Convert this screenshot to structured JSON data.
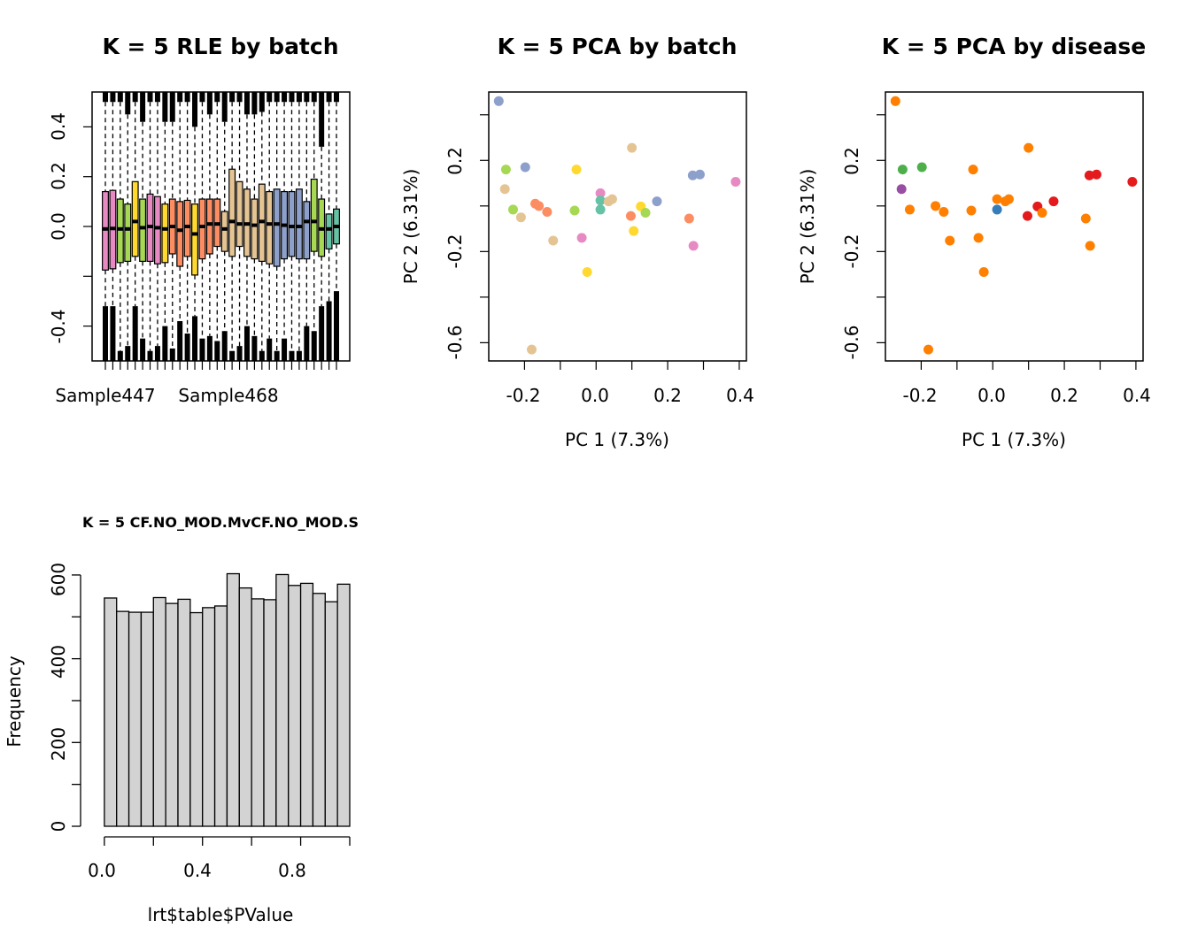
{
  "chart_data": [
    {
      "type": "boxplot",
      "title": "K = 5 RLE by batch",
      "xlabel": "",
      "ylabel": "",
      "x_tick_labels": [
        "Sample447",
        "Sample468"
      ],
      "y_ticks": [
        "-0.4",
        "0.0",
        "0.2",
        "0.4"
      ],
      "ylim": [
        -0.54,
        0.54
      ],
      "boxes": [
        {
          "color": "#E78AC3",
          "q1": -0.175,
          "q3": 0.14,
          "median": -0.01,
          "whisker_low": -0.32,
          "whisker_high": 0.5
        },
        {
          "color": "#E78AC3",
          "q1": -0.17,
          "q3": 0.145,
          "median": -0.008,
          "whisker_low": -0.32,
          "whisker_high": 0.5
        },
        {
          "color": "#A6D854",
          "q1": -0.145,
          "q3": 0.11,
          "median": -0.01,
          "whisker_low": -0.5,
          "whisker_high": 0.5
        },
        {
          "color": "#A6D854",
          "q1": -0.14,
          "q3": 0.09,
          "median": -0.01,
          "whisker_low": -0.48,
          "whisker_high": 0.45
        },
        {
          "color": "#FFD92F",
          "q1": -0.12,
          "q3": 0.18,
          "median": 0.02,
          "whisker_low": -0.32,
          "whisker_high": 0.5
        },
        {
          "color": "#A6D854",
          "q1": -0.14,
          "q3": 0.11,
          "median": -0.005,
          "whisker_low": -0.45,
          "whisker_high": 0.42
        },
        {
          "color": "#E78AC3",
          "q1": -0.14,
          "q3": 0.13,
          "median": 0.0,
          "whisker_low": -0.5,
          "whisker_high": 0.5
        },
        {
          "color": "#E78AC3",
          "q1": -0.15,
          "q3": 0.12,
          "median": -0.005,
          "whisker_low": -0.48,
          "whisker_high": 0.5
        },
        {
          "color": "#FFD92F",
          "q1": -0.145,
          "q3": 0.09,
          "median": -0.01,
          "whisker_low": -0.4,
          "whisker_high": 0.42
        },
        {
          "color": "#FC8D62",
          "q1": -0.11,
          "q3": 0.11,
          "median": 0.0,
          "whisker_low": -0.49,
          "whisker_high": 0.42
        },
        {
          "color": "#FC8D62",
          "q1": -0.16,
          "q3": 0.1,
          "median": -0.015,
          "whisker_low": -0.38,
          "whisker_high": 0.5
        },
        {
          "color": "#FC8D62",
          "q1": -0.12,
          "q3": 0.105,
          "median": 0.0,
          "whisker_low": -0.43,
          "whisker_high": 0.5
        },
        {
          "color": "#FFD92F",
          "q1": -0.195,
          "q3": 0.09,
          "median": -0.03,
          "whisker_low": -0.36,
          "whisker_high": 0.4
        },
        {
          "color": "#FC8D62",
          "q1": -0.13,
          "q3": 0.11,
          "median": 0.0,
          "whisker_low": -0.45,
          "whisker_high": 0.5
        },
        {
          "color": "#FC8D62",
          "q1": -0.11,
          "q3": 0.11,
          "median": 0.01,
          "whisker_low": -0.44,
          "whisker_high": 0.45
        },
        {
          "color": "#FC8D62",
          "q1": -0.08,
          "q3": 0.11,
          "median": 0.01,
          "whisker_low": -0.46,
          "whisker_high": 0.5
        },
        {
          "color": "#E5C494",
          "q1": -0.1,
          "q3": 0.06,
          "median": -0.01,
          "whisker_low": -0.42,
          "whisker_high": 0.42
        },
        {
          "color": "#E5C494",
          "q1": -0.12,
          "q3": 0.23,
          "median": 0.02,
          "whisker_low": -0.5,
          "whisker_high": 0.5
        },
        {
          "color": "#E5C494",
          "q1": -0.08,
          "q3": 0.18,
          "median": 0.01,
          "whisker_low": -0.48,
          "whisker_high": 0.5
        },
        {
          "color": "#E5C494",
          "q1": -0.12,
          "q3": 0.15,
          "median": 0.01,
          "whisker_low": -0.4,
          "whisker_high": 0.45
        },
        {
          "color": "#E5C494",
          "q1": -0.13,
          "q3": 0.11,
          "median": 0.005,
          "whisker_low": -0.44,
          "whisker_high": 0.45
        },
        {
          "color": "#E5C494",
          "q1": -0.14,
          "q3": 0.17,
          "median": 0.02,
          "whisker_low": -0.5,
          "whisker_high": 0.46
        },
        {
          "color": "#E5C494",
          "q1": -0.15,
          "q3": 0.14,
          "median": 0.01,
          "whisker_low": -0.45,
          "whisker_high": 0.5
        },
        {
          "color": "#8DA0CB",
          "q1": -0.16,
          "q3": 0.15,
          "median": 0.01,
          "whisker_low": -0.5,
          "whisker_high": 0.5
        },
        {
          "color": "#8DA0CB",
          "q1": -0.13,
          "q3": 0.14,
          "median": 0.005,
          "whisker_low": -0.45,
          "whisker_high": 0.5
        },
        {
          "color": "#8DA0CB",
          "q1": -0.12,
          "q3": 0.14,
          "median": 0.0,
          "whisker_low": -0.5,
          "whisker_high": 0.5
        },
        {
          "color": "#8DA0CB",
          "q1": -0.13,
          "q3": 0.15,
          "median": 0.0,
          "whisker_low": -0.5,
          "whisker_high": 0.5
        },
        {
          "color": "#8DA0CB",
          "q1": -0.13,
          "q3": 0.1,
          "median": 0.02,
          "whisker_low": -0.4,
          "whisker_high": 0.5
        },
        {
          "color": "#A6D854",
          "q1": -0.1,
          "q3": 0.19,
          "median": 0.02,
          "whisker_low": -0.42,
          "whisker_high": 0.5
        },
        {
          "color": "#A6D854",
          "q1": -0.12,
          "q3": 0.11,
          "median": -0.01,
          "whisker_low": -0.32,
          "whisker_high": 0.32
        },
        {
          "color": "#66C2A5",
          "q1": -0.09,
          "q3": 0.05,
          "median": -0.01,
          "whisker_low": -0.3,
          "whisker_high": 0.5
        },
        {
          "color": "#66C2A5",
          "q1": -0.07,
          "q3": 0.07,
          "median": 0.0,
          "whisker_low": -0.26,
          "whisker_high": 0.5
        }
      ]
    },
    {
      "type": "scatter",
      "title": "K = 5 PCA by batch",
      "xlabel": "PC 1 (7.3%)",
      "ylabel": "PC 2 (6.31%)",
      "x_ticks": [
        "-0.2",
        "0.0",
        "0.2",
        "0.4"
      ],
      "y_ticks": [
        "-0.6",
        "-0.2",
        "0.2"
      ],
      "xlim": [
        -0.3,
        0.42
      ],
      "ylim": [
        -0.68,
        0.5
      ],
      "points": [
        {
          "x": -0.272,
          "y": 0.46,
          "color": "#8DA0CB"
        },
        {
          "x": -0.252,
          "y": 0.16,
          "color": "#A6D854"
        },
        {
          "x": -0.255,
          "y": 0.074,
          "color": "#E5C494"
        },
        {
          "x": -0.198,
          "y": 0.17,
          "color": "#8DA0CB"
        },
        {
          "x": -0.232,
          "y": -0.016,
          "color": "#A6D854"
        },
        {
          "x": -0.21,
          "y": -0.05,
          "color": "#E5C494"
        },
        {
          "x": -0.17,
          "y": 0.01,
          "color": "#FC8D62"
        },
        {
          "x": -0.16,
          "y": 0.0,
          "color": "#FC8D62"
        },
        {
          "x": -0.137,
          "y": -0.026,
          "color": "#FC8D62"
        },
        {
          "x": -0.12,
          "y": -0.152,
          "color": "#E5C494"
        },
        {
          "x": -0.18,
          "y": -0.63,
          "color": "#E5C494"
        },
        {
          "x": -0.06,
          "y": -0.02,
          "color": "#A6D854"
        },
        {
          "x": -0.055,
          "y": 0.16,
          "color": "#FFD92F"
        },
        {
          "x": -0.04,
          "y": -0.14,
          "color": "#E78AC3"
        },
        {
          "x": -0.025,
          "y": -0.29,
          "color": "#FFD92F"
        },
        {
          "x": 0.012,
          "y": 0.056,
          "color": "#E78AC3"
        },
        {
          "x": 0.012,
          "y": 0.024,
          "color": "#66C2A5"
        },
        {
          "x": 0.012,
          "y": -0.016,
          "color": "#66C2A5"
        },
        {
          "x": 0.035,
          "y": 0.02,
          "color": "#E5C494"
        },
        {
          "x": 0.045,
          "y": 0.03,
          "color": "#E5C494"
        },
        {
          "x": 0.1,
          "y": 0.255,
          "color": "#E5C494"
        },
        {
          "x": 0.097,
          "y": -0.044,
          "color": "#FC8D62"
        },
        {
          "x": 0.105,
          "y": -0.11,
          "color": "#FFD92F"
        },
        {
          "x": 0.125,
          "y": -0.002,
          "color": "#FFD92F"
        },
        {
          "x": 0.138,
          "y": -0.03,
          "color": "#A6D854"
        },
        {
          "x": 0.17,
          "y": 0.02,
          "color": "#8DA0CB"
        },
        {
          "x": 0.26,
          "y": -0.055,
          "color": "#FC8D62"
        },
        {
          "x": 0.272,
          "y": -0.175,
          "color": "#E78AC3"
        },
        {
          "x": 0.27,
          "y": 0.134,
          "color": "#8DA0CB"
        },
        {
          "x": 0.29,
          "y": 0.138,
          "color": "#8DA0CB"
        },
        {
          "x": 0.39,
          "y": 0.106,
          "color": "#E78AC3"
        }
      ]
    },
    {
      "type": "scatter",
      "title": "K = 5 PCA by disease",
      "xlabel": "PC 1 (7.3%)",
      "ylabel": "PC 2 (6.31%)",
      "x_ticks": [
        "-0.2",
        "0.0",
        "0.2",
        "0.4"
      ],
      "y_ticks": [
        "-0.6",
        "-0.2",
        "0.2"
      ],
      "xlim": [
        -0.3,
        0.42
      ],
      "ylim": [
        -0.68,
        0.5
      ],
      "points": [
        {
          "x": -0.272,
          "y": 0.46,
          "color": "#FF7F00"
        },
        {
          "x": -0.252,
          "y": 0.16,
          "color": "#4DAF4A"
        },
        {
          "x": -0.255,
          "y": 0.074,
          "color": "#984EA3"
        },
        {
          "x": -0.198,
          "y": 0.17,
          "color": "#4DAF4A"
        },
        {
          "x": -0.232,
          "y": -0.016,
          "color": "#FF7F00"
        },
        {
          "x": -0.16,
          "y": 0.0,
          "color": "#FF7F00"
        },
        {
          "x": -0.137,
          "y": -0.026,
          "color": "#FF7F00"
        },
        {
          "x": -0.12,
          "y": -0.152,
          "color": "#FF7F00"
        },
        {
          "x": -0.18,
          "y": -0.63,
          "color": "#FF7F00"
        },
        {
          "x": -0.06,
          "y": -0.02,
          "color": "#FF7F00"
        },
        {
          "x": -0.055,
          "y": 0.16,
          "color": "#FF7F00"
        },
        {
          "x": -0.04,
          "y": -0.14,
          "color": "#FF7F00"
        },
        {
          "x": -0.025,
          "y": -0.29,
          "color": "#FF7F00"
        },
        {
          "x": 0.012,
          "y": 0.03,
          "color": "#FF7F00"
        },
        {
          "x": 0.012,
          "y": -0.016,
          "color": "#377EB8"
        },
        {
          "x": 0.035,
          "y": 0.02,
          "color": "#FF7F00"
        },
        {
          "x": 0.045,
          "y": 0.03,
          "color": "#FF7F00"
        },
        {
          "x": 0.1,
          "y": 0.255,
          "color": "#FF7F00"
        },
        {
          "x": 0.097,
          "y": -0.044,
          "color": "#E41A1C"
        },
        {
          "x": 0.125,
          "y": -0.002,
          "color": "#E41A1C"
        },
        {
          "x": 0.138,
          "y": -0.03,
          "color": "#FF7F00"
        },
        {
          "x": 0.17,
          "y": 0.02,
          "color": "#E41A1C"
        },
        {
          "x": 0.26,
          "y": -0.055,
          "color": "#FF7F00"
        },
        {
          "x": 0.272,
          "y": -0.175,
          "color": "#FF7F00"
        },
        {
          "x": 0.27,
          "y": 0.134,
          "color": "#E41A1C"
        },
        {
          "x": 0.29,
          "y": 0.138,
          "color": "#E41A1C"
        },
        {
          "x": 0.39,
          "y": 0.106,
          "color": "#E41A1C"
        }
      ]
    },
    {
      "type": "bar",
      "subtype": "histogram",
      "title": "K = 5 CF.NO_MOD.MvCF.NO_MOD.S",
      "xlabel": "lrt$table$PValue",
      "ylabel": "Frequency",
      "x_ticks": [
        "0.0",
        "0.4",
        "0.8"
      ],
      "y_ticks": [
        "0",
        "200",
        "400",
        "600"
      ],
      "xlim": [
        -0.05,
        1.0
      ],
      "ylim": [
        0,
        640
      ],
      "bin_width": 0.05,
      "bin_start": 0.0,
      "bar_color": "#D3D3D3",
      "values": [
        545,
        513,
        511,
        511,
        546,
        532,
        542,
        510,
        522,
        526,
        603,
        569,
        543,
        541,
        601,
        575,
        580,
        556,
        536,
        578
      ]
    }
  ]
}
